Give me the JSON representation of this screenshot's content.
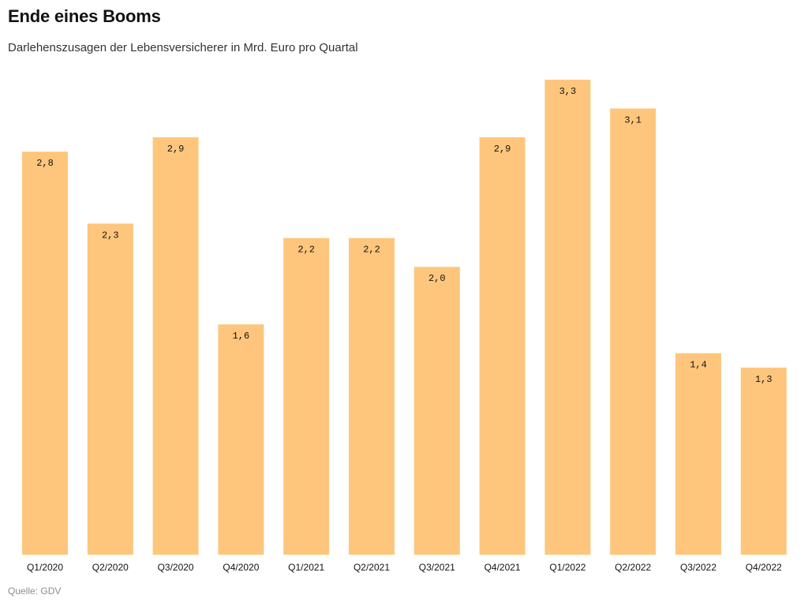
{
  "header": {
    "title": "Ende eines Booms",
    "subtitle": "Darlehenszusagen der Lebensversicherer in Mrd. Euro pro Quartal"
  },
  "footer": {
    "source": "Quelle: GDV"
  },
  "colors": {
    "bar": "#fec67d",
    "text": "#121212",
    "source_text": "#8c8c8c"
  },
  "chart_data": {
    "type": "bar",
    "title": "Ende eines Booms",
    "subtitle": "Darlehenszusagen der Lebensversicherer in Mrd. Euro pro Quartal",
    "xlabel": "",
    "ylabel": "",
    "ylim": [
      0,
      3.3
    ],
    "grid": false,
    "legend": "none",
    "categories": [
      "Q1/2020",
      "Q2/2020",
      "Q3/2020",
      "Q4/2020",
      "Q1/2021",
      "Q2/2021",
      "Q3/2021",
      "Q4/2021",
      "Q1/2022",
      "Q2/2022",
      "Q3/2022",
      "Q4/2022"
    ],
    "values": [
      2.8,
      2.3,
      2.9,
      1.6,
      2.2,
      2.2,
      2.0,
      2.9,
      3.3,
      3.1,
      1.4,
      1.3
    ],
    "value_labels": [
      "2,8",
      "2,3",
      "2,9",
      "1,6",
      "2,2",
      "2,2",
      "2,0",
      "2,9",
      "3,3",
      "3,1",
      "1,4",
      "1,3"
    ]
  }
}
